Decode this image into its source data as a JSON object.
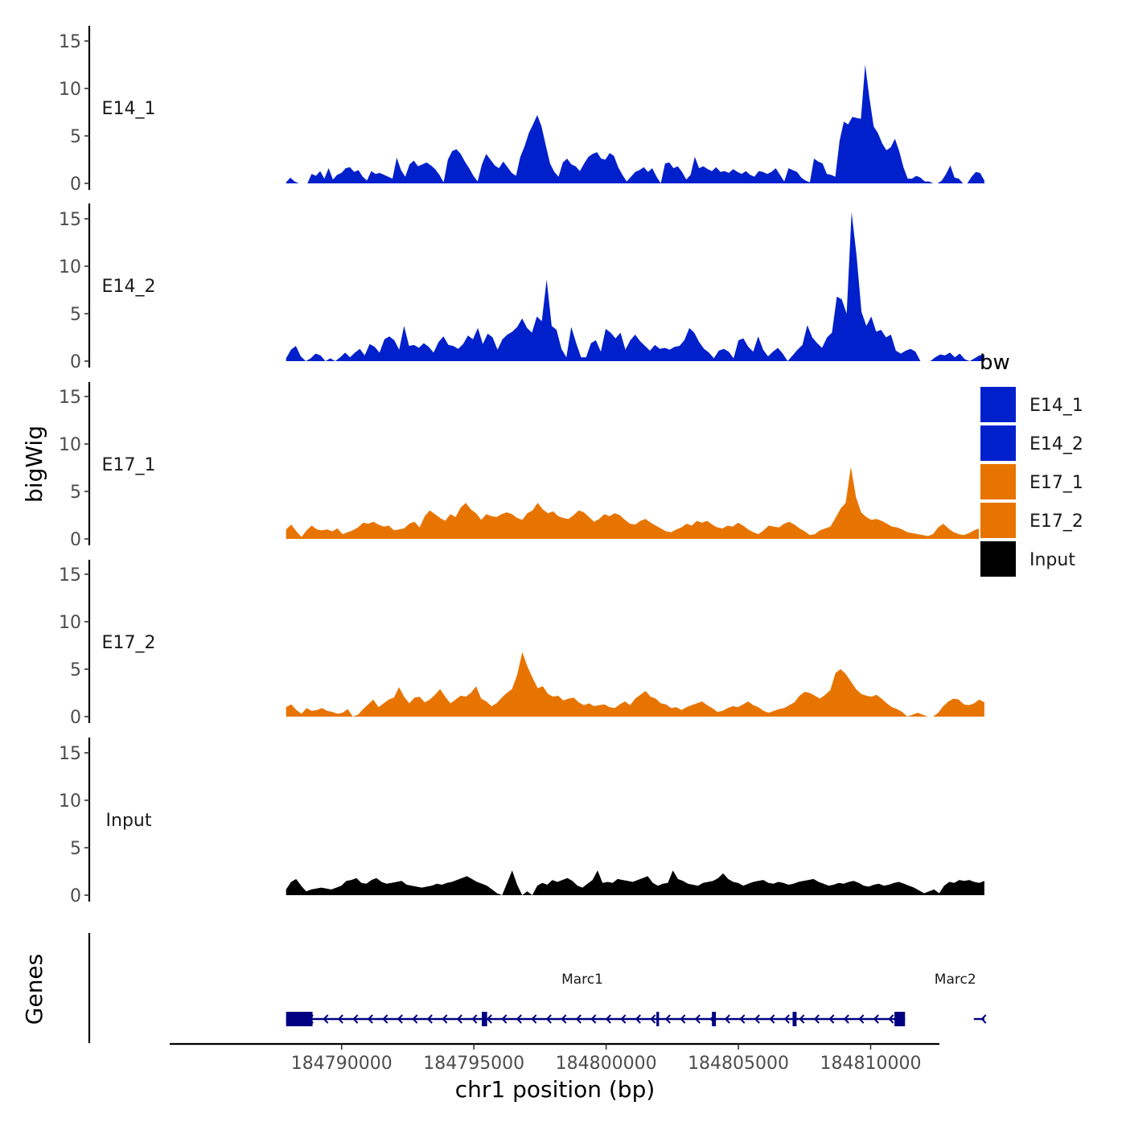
{
  "chart_data": {
    "type": "area",
    "title": "",
    "y_title": "bigWig",
    "genes_title": "Genes",
    "x_title": "chr1 position (bp)",
    "x_range": [
      184783500,
      184812600
    ],
    "x_ticks": [
      184790000,
      184795000,
      184800000,
      184805000,
      184810000
    ],
    "x_tick_labels": [
      "184790000",
      "184795000",
      "184800000",
      "184805000",
      "184810000"
    ],
    "y_range": [
      0,
      16
    ],
    "y_ticks": [
      0,
      5,
      10,
      15
    ],
    "y_tick_labels": [
      "0",
      "5",
      "10",
      "15"
    ],
    "signal_x_range": [
      184787900,
      184814300
    ],
    "legend": {
      "title": "bw",
      "position": "right",
      "entries": [
        {
          "label": "E14_1",
          "color": "#0020CC"
        },
        {
          "label": "E14_2",
          "color": "#0020CC"
        },
        {
          "label": "E17_1",
          "color": "#E87400"
        },
        {
          "label": "E17_2",
          "color": "#E87400"
        },
        {
          "label": "Input",
          "color": "#000000"
        }
      ]
    },
    "series": [
      {
        "name": "E14_1",
        "label": "E14_1",
        "color": "#0020CC",
        "values": [
          0.1,
          0.6,
          0.2,
          0.0,
          0.0,
          0.0,
          1.0,
          0.8,
          1.3,
          0.5,
          1.6,
          0.4,
          0.9,
          1.1,
          1.6,
          1.7,
          1.2,
          1.4,
          0.7,
          0.3,
          1.3,
          1.0,
          1.1,
          0.9,
          0.7,
          0.5,
          2.7,
          1.4,
          0.7,
          2.0,
          2.4,
          1.8,
          2.0,
          2.2,
          1.9,
          1.5,
          0.9,
          0.1,
          2.5,
          3.4,
          3.6,
          3.1,
          2.3,
          1.6,
          0.8,
          0.2,
          2.0,
          3.1,
          2.5,
          1.9,
          1.6,
          2.3,
          1.7,
          1.1,
          0.8,
          2.8,
          3.9,
          5.3,
          6.2,
          7.2,
          6.0,
          4.0,
          2.1,
          1.2,
          0.7,
          2.2,
          2.6,
          2.0,
          1.8,
          1.3,
          2.1,
          2.8,
          3.1,
          3.3,
          2.6,
          2.5,
          3.2,
          2.9,
          1.7,
          0.9,
          0.2,
          0.7,
          1.2,
          1.4,
          1.7,
          1.2,
          1.6,
          0.7,
          0.0,
          2.1,
          2.2,
          1.6,
          1.8,
          1.2,
          0.4,
          0.9,
          2.8,
          1.6,
          1.8,
          1.5,
          1.3,
          1.7,
          1.2,
          1.3,
          1.1,
          1.5,
          1.2,
          1.0,
          1.3,
          0.9,
          0.7,
          1.3,
          1.2,
          1.0,
          1.2,
          1.6,
          0.9,
          0.2,
          1.6,
          1.4,
          1.2,
          0.6,
          0.3,
          0.1,
          2.6,
          2.3,
          2.1,
          1.0,
          0.9,
          0.7,
          4.5,
          6.5,
          6.2,
          7.0,
          6.9,
          6.8,
          12.5,
          9.0,
          6.0,
          5.3,
          4.2,
          3.5,
          3.8,
          4.7,
          3.4,
          1.7,
          0.5,
          0.5,
          0.8,
          0.6,
          0.2,
          0.2,
          0.0,
          0.0,
          0.3,
          1.0,
          1.9,
          0.6,
          0.5,
          0.0,
          0.0,
          0.7,
          1.2,
          1.1,
          0.3
        ]
      },
      {
        "name": "E14_2",
        "label": "E14_2",
        "color": "#0020CC",
        "values": [
          0.3,
          1.2,
          1.6,
          0.5,
          0.0,
          0.3,
          0.8,
          0.6,
          0.0,
          0.3,
          0.0,
          0.4,
          0.9,
          0.4,
          0.9,
          1.3,
          0.6,
          1.8,
          1.5,
          0.9,
          2.3,
          2.6,
          2.2,
          1.2,
          3.7,
          1.6,
          1.7,
          1.4,
          1.9,
          1.5,
          0.9,
          2.0,
          2.6,
          1.7,
          1.6,
          1.3,
          1.8,
          2.7,
          2.3,
          3.5,
          1.8,
          2.9,
          2.5,
          1.2,
          2.3,
          2.8,
          3.1,
          3.6,
          4.5,
          3.5,
          3.0,
          4.7,
          4.2,
          8.6,
          3.7,
          3.3,
          1.3,
          0.4,
          3.6,
          1.9,
          0.4,
          0.4,
          1.9,
          2.2,
          1.0,
          3.4,
          3.0,
          2.4,
          3.0,
          1.2,
          2.2,
          2.8,
          2.1,
          1.6,
          1.1,
          1.7,
          1.3,
          1.4,
          1.2,
          1.5,
          1.6,
          2.2,
          3.5,
          3.0,
          2.0,
          1.3,
          0.9,
          0.3,
          1.1,
          1.3,
          1.0,
          0.3,
          2.2,
          2.4,
          1.5,
          1.0,
          2.6,
          1.2,
          0.5,
          1.0,
          1.4,
          0.8,
          0.0,
          0.6,
          1.2,
          1.7,
          3.8,
          2.5,
          1.9,
          1.4,
          2.5,
          3.0,
          6.8,
          6.5,
          5.0,
          15.7,
          11.2,
          5.2,
          3.7,
          4.7,
          3.1,
          3.3,
          2.5,
          2.8,
          1.1,
          0.8,
          1.1,
          1.3,
          1.0,
          0.0,
          0.0,
          0.0,
          0.4,
          0.7,
          0.6,
          0.9,
          0.4,
          0.8,
          0.2,
          0.0,
          0.3,
          0.6,
          0.7
        ]
      },
      {
        "name": "E17_1",
        "label": "E17_1",
        "color": "#E87400",
        "values": [
          1.0,
          1.5,
          0.8,
          0.2,
          0.9,
          1.4,
          1.0,
          0.9,
          1.0,
          0.8,
          1.1,
          0.5,
          0.7,
          0.9,
          1.2,
          1.7,
          1.6,
          1.8,
          1.5,
          1.3,
          1.4,
          0.9,
          1.0,
          1.1,
          1.6,
          1.8,
          1.2,
          2.4,
          3.0,
          2.6,
          2.2,
          1.9,
          2.6,
          2.3,
          3.3,
          3.8,
          3.1,
          2.7,
          2.0,
          2.6,
          2.4,
          2.3,
          2.6,
          2.8,
          2.6,
          2.2,
          2.0,
          2.7,
          3.0,
          3.8,
          3.1,
          2.7,
          2.9,
          2.4,
          2.2,
          2.1,
          2.5,
          3.0,
          2.8,
          2.3,
          1.8,
          2.1,
          2.6,
          2.4,
          2.7,
          2.5,
          2.0,
          1.6,
          1.5,
          1.9,
          2.1,
          1.7,
          1.4,
          1.1,
          0.8,
          0.7,
          1.0,
          1.2,
          1.6,
          1.4,
          1.9,
          1.7,
          1.9,
          1.5,
          1.2,
          1.1,
          1.4,
          1.3,
          1.7,
          1.4,
          1.0,
          0.7,
          0.5,
          0.9,
          1.4,
          1.3,
          1.2,
          1.6,
          1.8,
          1.5,
          1.1,
          0.8,
          0.4,
          0.5,
          0.9,
          1.1,
          1.3,
          2.2,
          3.2,
          3.8,
          7.6,
          4.4,
          2.8,
          2.3,
          2.0,
          2.1,
          1.9,
          1.6,
          1.3,
          1.2,
          1.0,
          0.7,
          0.6,
          0.5,
          0.4,
          0.3,
          0.5,
          1.2,
          1.6,
          1.1,
          0.7,
          0.5,
          0.4,
          0.6,
          0.9,
          1.1,
          0.8
        ]
      },
      {
        "name": "E17_2",
        "label": "E17_2",
        "color": "#E87400",
        "values": [
          1.0,
          1.3,
          0.7,
          0.3,
          0.9,
          0.6,
          0.7,
          0.9,
          0.6,
          0.5,
          0.3,
          0.4,
          0.8,
          0.0,
          0.2,
          0.8,
          1.3,
          1.8,
          1.0,
          1.4,
          1.8,
          2.0,
          3.1,
          2.1,
          1.4,
          2.0,
          2.1,
          1.5,
          1.8,
          2.3,
          2.9,
          2.1,
          1.4,
          1.8,
          2.2,
          2.1,
          2.5,
          3.2,
          1.9,
          1.6,
          1.1,
          1.4,
          2.0,
          2.5,
          2.9,
          4.4,
          6.8,
          5.3,
          4.1,
          3.0,
          3.2,
          2.4,
          2.1,
          2.2,
          1.7,
          1.9,
          2.0,
          1.5,
          1.2,
          1.4,
          1.1,
          1.2,
          1.3,
          1.0,
          0.9,
          1.3,
          1.6,
          1.2,
          1.9,
          2.3,
          2.7,
          2.1,
          1.9,
          1.4,
          1.3,
          0.9,
          1.0,
          0.7,
          1.0,
          1.2,
          1.4,
          1.6,
          1.2,
          0.9,
          0.5,
          0.6,
          0.9,
          1.1,
          1.0,
          1.3,
          1.6,
          1.2,
          1.0,
          0.6,
          0.4,
          0.6,
          0.8,
          0.9,
          1.2,
          1.5,
          2.2,
          2.6,
          2.5,
          2.2,
          1.9,
          2.3,
          2.8,
          4.6,
          5.0,
          4.5,
          3.7,
          2.9,
          2.4,
          2.2,
          2.1,
          2.3,
          1.9,
          1.4,
          1.0,
          0.8,
          0.5,
          0.0,
          0.2,
          0.4,
          0.2,
          0.0,
          0.0,
          0.4,
          1.1,
          1.6,
          1.9,
          1.8,
          1.3,
          1.2,
          1.4,
          1.8,
          1.5
        ]
      },
      {
        "name": "Input",
        "label": "Input",
        "color": "#000000",
        "values": [
          0.6,
          1.4,
          1.7,
          1.0,
          0.4,
          0.6,
          0.7,
          0.8,
          0.7,
          0.6,
          0.8,
          1.0,
          1.5,
          1.6,
          1.8,
          1.3,
          1.2,
          1.6,
          1.8,
          1.4,
          1.2,
          1.3,
          1.4,
          1.5,
          1.1,
          1.0,
          0.9,
          0.8,
          0.9,
          1.0,
          1.2,
          1.1,
          1.3,
          1.4,
          1.6,
          1.8,
          2.0,
          1.7,
          1.4,
          1.2,
          1.0,
          0.6,
          0.2,
          0.0,
          1.3,
          2.6,
          1.1,
          0.0,
          0.4,
          0.0,
          1.0,
          1.3,
          1.1,
          1.6,
          1.4,
          1.6,
          1.8,
          1.5,
          1.0,
          0.8,
          1.2,
          1.6,
          2.6,
          1.3,
          1.4,
          1.3,
          1.7,
          1.6,
          1.5,
          1.4,
          1.6,
          1.8,
          2.0,
          1.3,
          1.0,
          1.2,
          1.3,
          2.6,
          1.7,
          1.5,
          1.2,
          1.1,
          1.0,
          1.3,
          1.4,
          1.5,
          1.8,
          2.3,
          1.7,
          1.4,
          1.3,
          1.0,
          1.2,
          1.4,
          1.5,
          1.6,
          1.3,
          1.2,
          1.4,
          1.3,
          1.1,
          1.2,
          1.4,
          1.5,
          1.6,
          1.7,
          1.4,
          1.2,
          1.0,
          1.1,
          1.3,
          1.2,
          1.4,
          1.5,
          1.3,
          1.0,
          0.9,
          1.1,
          1.2,
          1.0,
          1.1,
          1.3,
          1.4,
          1.2,
          1.0,
          0.8,
          0.5,
          0.2,
          0.4,
          0.6,
          0.2,
          1.0,
          1.4,
          1.3,
          1.6,
          1.5,
          1.6,
          1.4,
          1.3,
          1.5
        ]
      }
    ],
    "genes": [
      {
        "name": "Marc1",
        "start": 184787900,
        "end": 184811300,
        "strand": "-",
        "label_x": 184799100,
        "color": "#000080",
        "exons": [
          [
            184787900,
            184788900
          ],
          [
            184795300,
            184795500
          ],
          [
            184801900,
            184802000
          ],
          [
            184804000,
            184804150
          ],
          [
            184807050,
            184807200
          ],
          [
            184810900,
            184811300
          ]
        ]
      },
      {
        "name": "Marc2",
        "start": 184813900,
        "end": 184814300,
        "strand": "-",
        "label_x": 184813200,
        "color": "#000080",
        "exons": []
      }
    ]
  }
}
